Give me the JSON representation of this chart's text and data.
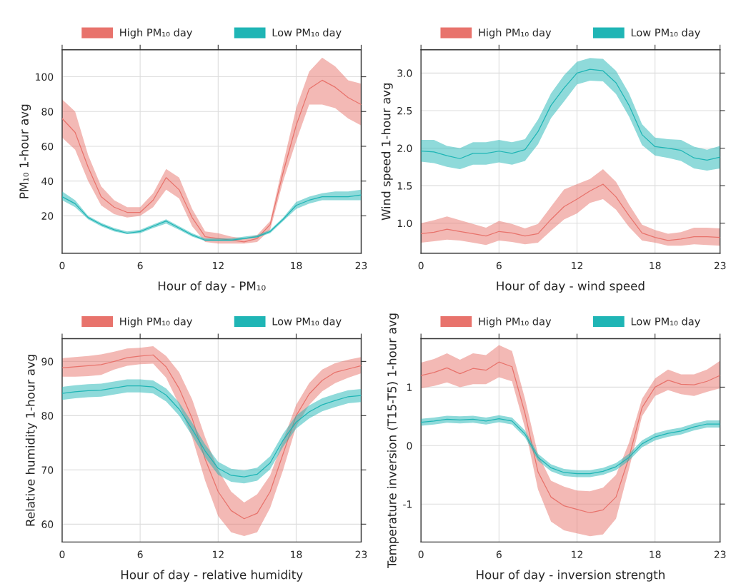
{
  "chart_data": [
    {
      "type": "line",
      "xlabel": "Hour of day - PM₁₀",
      "ylabel": "PM₁₀ 1-hour avg",
      "x": [
        0,
        1,
        2,
        3,
        4,
        5,
        6,
        7,
        8,
        9,
        10,
        11,
        12,
        13,
        14,
        15,
        16,
        17,
        18,
        19,
        20,
        21,
        22,
        23
      ],
      "xlim": [
        0,
        23
      ],
      "xticks": [
        0,
        6,
        12,
        18,
        23
      ],
      "ylim": [
        -1.5,
        115.5
      ],
      "yticks": [
        20,
        40,
        60,
        80,
        100
      ],
      "grid": true,
      "legend": "top",
      "series": [
        {
          "name": "High PM₁₀ day",
          "color": "#e8736c",
          "values": [
            76,
            68,
            48,
            31,
            25,
            22,
            22,
            29,
            42,
            35,
            19,
            8,
            7,
            6,
            5,
            7,
            15,
            45,
            72,
            93,
            98,
            94,
            88,
            84
          ],
          "lower": [
            65,
            58,
            40,
            26,
            21,
            19,
            20,
            25,
            35,
            30,
            14,
            5,
            4,
            4,
            4,
            5,
            12,
            40,
            63,
            84,
            84,
            82,
            76,
            72
          ],
          "upper": [
            87,
            80,
            55,
            37,
            29,
            25,
            25,
            33,
            47,
            42,
            24,
            11,
            10,
            8,
            7,
            9,
            17,
            50,
            82,
            103,
            111,
            106,
            98,
            96
          ]
        },
        {
          "name": "Low PM₁₀ day",
          "color": "#1fb5b5",
          "values": [
            31,
            27,
            19,
            15,
            12,
            10,
            11,
            14,
            17,
            13,
            9,
            6,
            6,
            6,
            7,
            8,
            11,
            18,
            26,
            29,
            31,
            31,
            31,
            32
          ],
          "lower": [
            29,
            25,
            18,
            14,
            11,
            9.5,
            10,
            13,
            15.5,
            12,
            8,
            5.5,
            5.5,
            5.5,
            6.5,
            7.5,
            10,
            17,
            24,
            27,
            29,
            29,
            29,
            29
          ],
          "upper": [
            34,
            29,
            20,
            16,
            13,
            11,
            12,
            15,
            18,
            14,
            10,
            7,
            7,
            7,
            8,
            9,
            12,
            19,
            28,
            31,
            33,
            34,
            34,
            35
          ]
        }
      ]
    },
    {
      "type": "line",
      "xlabel": "Hour of day - wind speed",
      "ylabel": "Wind speed 1-hour avg",
      "x": [
        0,
        1,
        2,
        3,
        4,
        5,
        6,
        7,
        8,
        9,
        10,
        11,
        12,
        13,
        14,
        15,
        16,
        17,
        18,
        19,
        20,
        21,
        22,
        23
      ],
      "xlim": [
        0,
        23
      ],
      "xticks": [
        0,
        6,
        12,
        18,
        23
      ],
      "ylim": [
        0.6,
        3.31
      ],
      "yticks": [
        {
          "value": 1,
          "label": "1.0"
        },
        1.5,
        {
          "value": 2,
          "label": "2.0"
        },
        2.5,
        {
          "value": 3,
          "label": "3.0"
        }
      ],
      "grid": true,
      "legend": "top",
      "series": [
        {
          "name": "High PM₁₀ day",
          "color": "#e8736c",
          "values": [
            0.86,
            0.88,
            0.92,
            0.89,
            0.86,
            0.83,
            0.89,
            0.87,
            0.83,
            0.86,
            1.05,
            1.22,
            1.32,
            1.43,
            1.52,
            1.35,
            1.1,
            0.87,
            0.81,
            0.77,
            0.79,
            0.82,
            0.82,
            0.81
          ],
          "lower": [
            0.74,
            0.76,
            0.78,
            0.77,
            0.74,
            0.71,
            0.77,
            0.75,
            0.72,
            0.74,
            0.9,
            1.05,
            1.13,
            1.27,
            1.32,
            1.18,
            0.95,
            0.77,
            0.74,
            0.7,
            0.7,
            0.72,
            0.71,
            0.7
          ],
          "upper": [
            1.0,
            1.04,
            1.09,
            1.04,
            0.99,
            0.94,
            1.03,
            0.99,
            0.93,
            0.99,
            1.22,
            1.45,
            1.52,
            1.59,
            1.72,
            1.55,
            1.25,
            0.98,
            0.91,
            0.86,
            0.88,
            0.94,
            0.94,
            0.93
          ]
        },
        {
          "name": "Low PM₁₀ day",
          "color": "#1fb5b5",
          "values": [
            1.96,
            1.95,
            1.9,
            1.86,
            1.93,
            1.93,
            1.96,
            1.93,
            1.98,
            2.22,
            2.57,
            2.8,
            3.0,
            3.05,
            3.03,
            2.87,
            2.57,
            2.18,
            2.02,
            2.0,
            1.97,
            1.87,
            1.84,
            1.88
          ],
          "lower": [
            1.82,
            1.8,
            1.75,
            1.72,
            1.78,
            1.78,
            1.81,
            1.78,
            1.83,
            2.05,
            2.4,
            2.62,
            2.85,
            2.9,
            2.89,
            2.72,
            2.42,
            2.04,
            1.9,
            1.87,
            1.83,
            1.73,
            1.7,
            1.73
          ],
          "upper": [
            2.11,
            2.11,
            2.03,
            2.0,
            2.08,
            2.08,
            2.11,
            2.08,
            2.12,
            2.38,
            2.73,
            2.97,
            3.15,
            3.2,
            3.19,
            3.03,
            2.73,
            2.32,
            2.14,
            2.12,
            2.11,
            2.02,
            1.98,
            2.03
          ]
        }
      ]
    },
    {
      "type": "line",
      "xlabel": "Hour of day - relative humidity",
      "ylabel": "Relative humidity 1-hour avg",
      "x": [
        0,
        1,
        2,
        3,
        4,
        5,
        6,
        7,
        8,
        9,
        10,
        11,
        12,
        13,
        14,
        15,
        16,
        17,
        18,
        19,
        20,
        21,
        22,
        23
      ],
      "xlim": [
        0,
        23
      ],
      "xticks": [
        0,
        6,
        12,
        18,
        23
      ],
      "ylim": [
        56.7,
        94.2
      ],
      "yticks": [
        60,
        70,
        80,
        90
      ],
      "grid": true,
      "legend": "top",
      "series": [
        {
          "name": "High PM₁₀ day",
          "color": "#e8736c",
          "values": [
            88.8,
            89.0,
            89.2,
            89.4,
            90.0,
            90.7,
            91.0,
            91.2,
            89.0,
            85,
            79.5,
            72,
            66,
            62.5,
            61,
            62,
            66,
            73,
            80,
            84,
            86.5,
            88,
            88.6,
            89.2
          ],
          "lower": [
            87.2,
            87.2,
            87.3,
            87.5,
            88.5,
            89.2,
            89.5,
            89.6,
            87,
            82,
            76,
            68,
            61.5,
            58.5,
            57.8,
            58.5,
            63,
            70,
            78,
            82,
            84.5,
            86,
            87,
            87.8
          ],
          "upper": [
            90.6,
            90.8,
            91,
            91.3,
            91.8,
            92.4,
            92.5,
            92.8,
            91,
            88,
            83,
            76,
            70,
            66,
            64,
            65.5,
            69,
            75.5,
            82,
            86,
            88.5,
            89.7,
            90.3,
            90.8
          ]
        },
        {
          "name": "Low PM₁₀ day",
          "color": "#1fb5b5",
          "values": [
            84.1,
            84.4,
            84.6,
            84.7,
            85.1,
            85.5,
            85.5,
            85.3,
            83.8,
            81.2,
            77.5,
            73.5,
            70.3,
            69,
            68.7,
            69.2,
            71.3,
            75.5,
            78.8,
            80.7,
            82,
            82.8,
            83.5,
            83.7
          ],
          "lower": [
            82.9,
            83.2,
            83.4,
            83.5,
            83.9,
            84.3,
            84.3,
            84.1,
            82.6,
            80,
            76.3,
            72.3,
            69.1,
            67.8,
            67.5,
            68,
            70.1,
            74.3,
            77.6,
            79.5,
            80.8,
            81.6,
            82.3,
            82.5
          ],
          "upper": [
            85.3,
            85.6,
            85.8,
            85.9,
            86.3,
            86.7,
            86.7,
            86.5,
            85,
            82.4,
            78.7,
            74.7,
            71.5,
            70.2,
            69.9,
            70.4,
            72.5,
            76.7,
            80,
            81.9,
            83.2,
            84,
            84.7,
            84.9
          ]
        }
      ]
    },
    {
      "type": "line",
      "xlabel": "Hour of day - inversion strength",
      "ylabel": "Temperature inversion (T15-T5) 1-hour avg",
      "x": [
        0,
        1,
        2,
        3,
        4,
        5,
        6,
        7,
        8,
        9,
        10,
        11,
        12,
        13,
        14,
        15,
        16,
        17,
        18,
        19,
        20,
        21,
        22,
        23
      ],
      "xlim": [
        0,
        23
      ],
      "xticks": [
        0,
        6,
        12,
        18,
        23
      ],
      "ylim": [
        -1.65,
        1.83
      ],
      "yticks": [
        -1,
        0,
        1
      ],
      "grid": true,
      "legend": "top",
      "series": [
        {
          "name": "High PM₁₀ day",
          "color": "#e8736c",
          "values": [
            1.2,
            1.25,
            1.33,
            1.23,
            1.32,
            1.29,
            1.43,
            1.35,
            0.55,
            -0.45,
            -0.88,
            -1.03,
            -1.09,
            -1.15,
            -1.1,
            -0.88,
            -0.2,
            0.65,
            1.0,
            1.12,
            1.05,
            1.04,
            1.1,
            1.2
          ],
          "lower": [
            0.98,
            1.02,
            1.08,
            1.0,
            1.05,
            1.05,
            1.17,
            1.1,
            0.3,
            -0.75,
            -1.3,
            -1.45,
            -1.5,
            -1.55,
            -1.52,
            -1.25,
            -0.4,
            0.5,
            0.85,
            0.95,
            0.88,
            0.85,
            0.92,
            0.98
          ],
          "upper": [
            1.42,
            1.48,
            1.58,
            1.47,
            1.58,
            1.55,
            1.72,
            1.62,
            0.8,
            -0.15,
            -0.6,
            -0.7,
            -0.77,
            -0.78,
            -0.72,
            -0.5,
            0.05,
            0.8,
            1.15,
            1.3,
            1.22,
            1.22,
            1.3,
            1.45
          ]
        },
        {
          "name": "Low PM₁₀ day",
          "color": "#1fb5b5",
          "values": [
            0.4,
            0.42,
            0.45,
            0.44,
            0.45,
            0.42,
            0.46,
            0.42,
            0.2,
            -0.2,
            -0.38,
            -0.46,
            -0.48,
            -0.48,
            -0.44,
            -0.36,
            -0.2,
            0.03,
            0.15,
            0.21,
            0.25,
            0.32,
            0.37,
            0.37
          ],
          "lower": [
            0.34,
            0.36,
            0.39,
            0.38,
            0.39,
            0.36,
            0.4,
            0.36,
            0.14,
            -0.26,
            -0.44,
            -0.52,
            -0.54,
            -0.54,
            -0.5,
            -0.42,
            -0.26,
            -0.03,
            0.09,
            0.15,
            0.19,
            0.26,
            0.31,
            0.31
          ],
          "upper": [
            0.46,
            0.48,
            0.51,
            0.5,
            0.51,
            0.48,
            0.52,
            0.48,
            0.26,
            -0.14,
            -0.32,
            -0.4,
            -0.42,
            -0.42,
            -0.38,
            -0.3,
            -0.14,
            0.09,
            0.21,
            0.27,
            0.31,
            0.38,
            0.43,
            0.43
          ]
        }
      ]
    }
  ]
}
